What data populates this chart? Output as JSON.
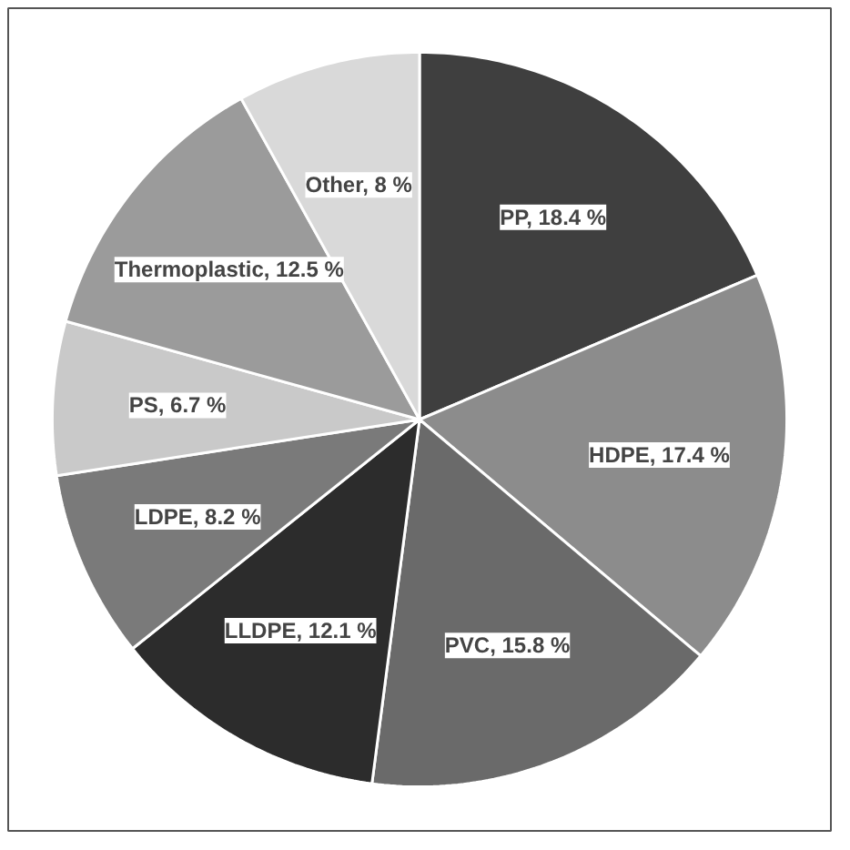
{
  "chart_data": {
    "type": "pie",
    "categories": [
      "PP",
      "HDPE",
      "PVC",
      "LLDPE",
      "LDPE",
      "PS",
      "Thermoplastic",
      "Other"
    ],
    "values": [
      18.4,
      17.4,
      15.8,
      12.1,
      8.2,
      6.7,
      12.5,
      8
    ],
    "colors": [
      "#3f3f3f",
      "#8c8c8c",
      "#6a6a6a",
      "#2c2c2c",
      "#7a7a7a",
      "#c9c9c9",
      "#9b9b9b",
      "#d9d9d9"
    ],
    "value_labels": [
      "18.4 %",
      "17.4 %",
      "15.8 %",
      "12.1 %",
      "8.2 %",
      "6.7 %",
      "12.5 %",
      "8 %"
    ]
  }
}
